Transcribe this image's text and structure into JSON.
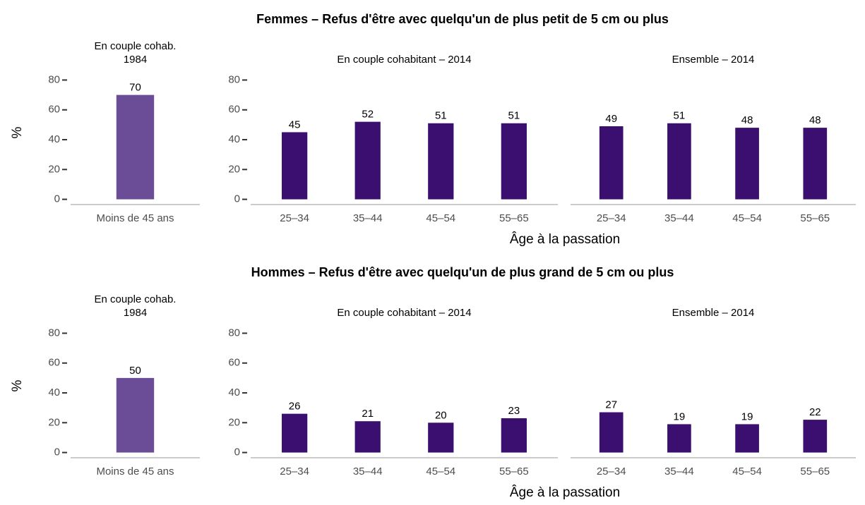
{
  "chart_data": [
    {
      "type": "bar",
      "title": "Femmes – Refus d'être avec quelqu'un de plus petit de 5 cm ou plus",
      "xlabel": "Âge à la passation",
      "ylabel": "%",
      "panels": [
        {
          "title": [
            "En couple cohab.",
            "1984"
          ],
          "categories": [
            "Moins de 45 ans"
          ],
          "values": [
            70
          ],
          "value_labels": [
            "70"
          ],
          "color": "#6b4c96",
          "ylim": [
            -3.5,
            84
          ],
          "yticks": [
            0,
            20,
            40,
            60,
            80
          ]
        },
        {
          "title": [
            "En couple cohabitant – 2014"
          ],
          "categories": [
            "25–34",
            "35–44",
            "45–54",
            "55–65"
          ],
          "values": [
            45,
            52,
            51,
            51
          ],
          "value_labels": [
            "45",
            "52",
            "51",
            "51"
          ],
          "color": "#3b0f6f",
          "ylim": [
            -3.5,
            84
          ],
          "yticks": [
            0,
            20,
            40,
            60,
            80
          ]
        },
        {
          "title": [
            "Ensemble – 2014"
          ],
          "categories": [
            "25–34",
            "35–44",
            "45–54",
            "55–65"
          ],
          "values": [
            49,
            51,
            48,
            48
          ],
          "value_labels": [
            "49",
            "51",
            "48",
            "48"
          ],
          "color": "#3b0f6f",
          "ylim": [
            -3.5,
            84
          ]
        }
      ]
    },
    {
      "type": "bar",
      "title": "Hommes – Refus d'être avec quelqu'un de plus grand de 5 cm ou plus",
      "xlabel": "Âge à la passation",
      "ylabel": "%",
      "panels": [
        {
          "title": [
            "En couple cohab.",
            "1984"
          ],
          "categories": [
            "Moins de 45 ans"
          ],
          "values": [
            50
          ],
          "value_labels": [
            "50"
          ],
          "color": "#6b4c96",
          "ylim": [
            -3.5,
            84
          ],
          "yticks": [
            0,
            20,
            40,
            60,
            80
          ]
        },
        {
          "title": [
            "En couple cohabitant – 2014"
          ],
          "categories": [
            "25–34",
            "35–44",
            "45–54",
            "55–65"
          ],
          "values": [
            26,
            21,
            20,
            23
          ],
          "value_labels": [
            "26",
            "21",
            "20",
            "23"
          ],
          "color": "#3b0f6f",
          "ylim": [
            -3.5,
            84
          ],
          "yticks": [
            0,
            20,
            40,
            60,
            80
          ]
        },
        {
          "title": [
            "Ensemble – 2014"
          ],
          "categories": [
            "25–34",
            "35–44",
            "45–54",
            "55–65"
          ],
          "values": [
            27,
            19,
            19,
            22
          ],
          "value_labels": [
            "27",
            "19",
            "19",
            "22"
          ],
          "color": "#3b0f6f",
          "ylim": [
            -3.5,
            84
          ]
        }
      ]
    }
  ]
}
